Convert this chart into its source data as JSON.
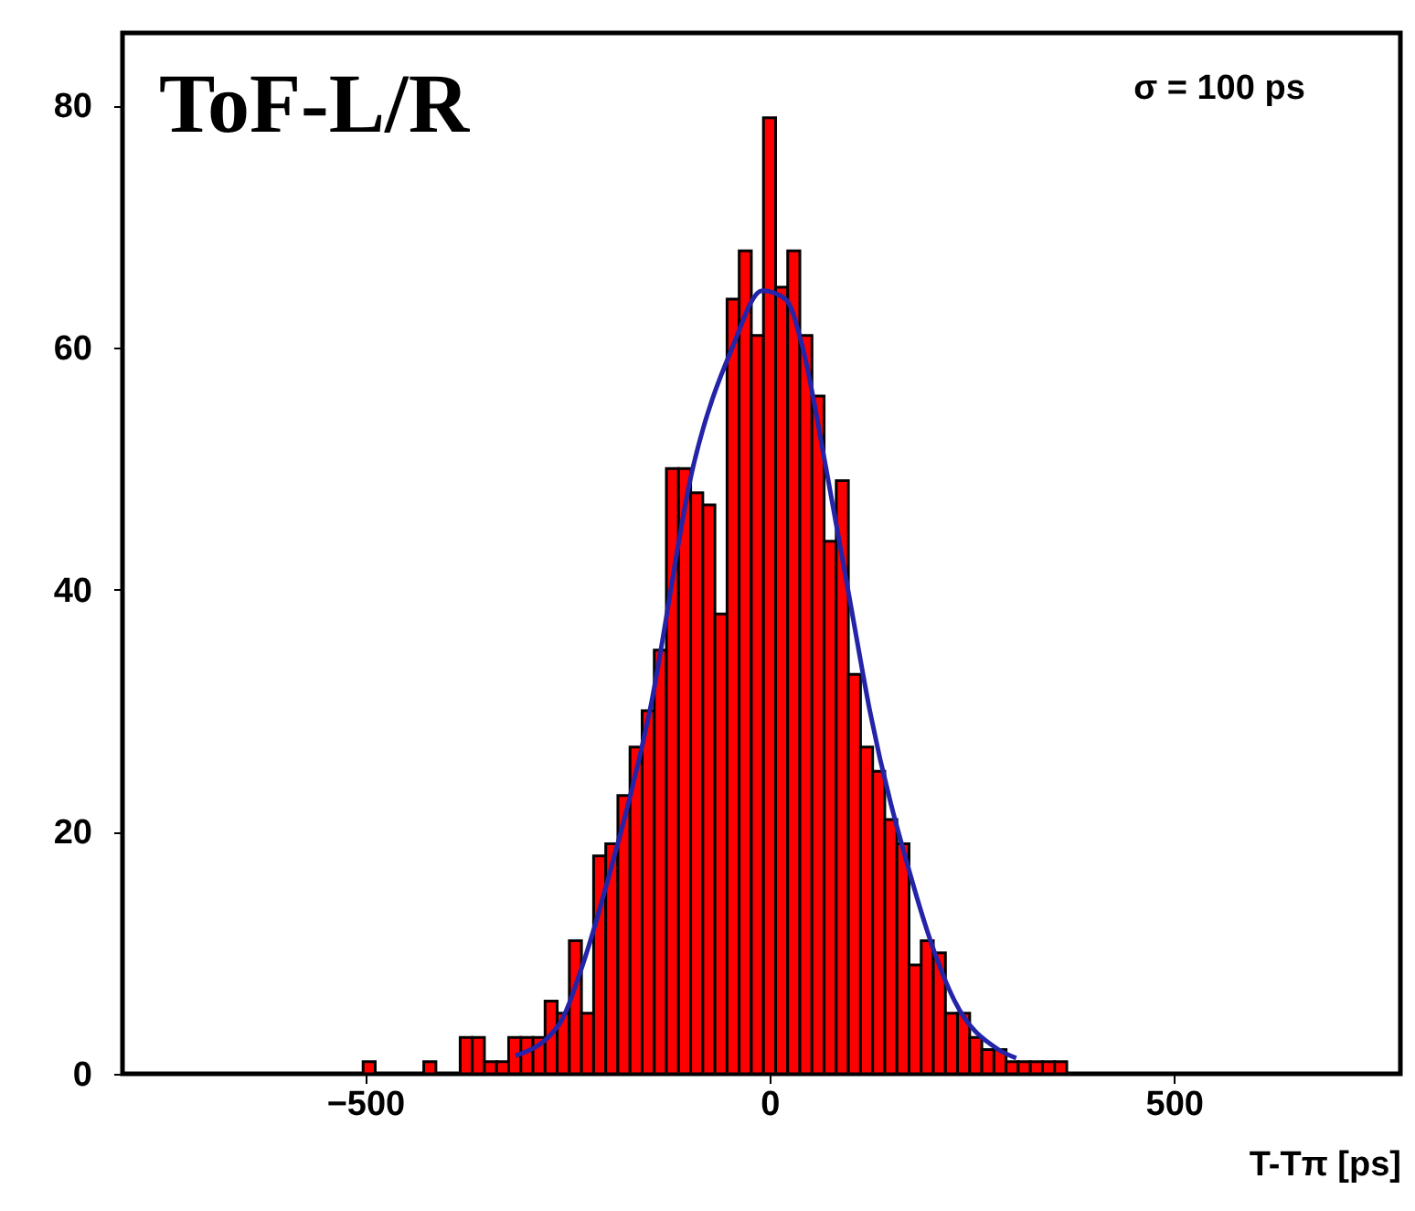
{
  "chart_data": {
    "type": "histogram",
    "xlabel": "T-Tπ [ps]",
    "annotations": [
      "ToF-L/R",
      "σ = 100 ps"
    ],
    "bins": [
      -502.5,
      -487.5,
      -472.5,
      -457.5,
      -442.5,
      -427.5,
      -412.5,
      -397.5,
      -382.5,
      -367.5,
      -352.5,
      -337.5,
      -322.5,
      -307.5,
      -292.5,
      -277.5,
      -262.5,
      -247.5,
      -232.5,
      -217.5,
      -202.5,
      -187.5,
      -172.5,
      -157.5,
      -142.5,
      -127.5,
      -112.5,
      -97.5,
      -82.5,
      -67.5,
      -52.5,
      -37.5,
      -22.5,
      -7.5,
      7.5,
      22.5,
      37.5,
      52.5,
      67.5,
      82.5,
      97.5,
      112.5,
      127.5,
      142.5,
      157.5,
      172.5,
      187.5,
      202.5,
      217.5,
      232.5,
      247.5,
      262.5,
      277.5,
      292.5,
      307.5,
      322.5,
      337.5,
      352.5,
      367.5
    ],
    "series": [
      {
        "type": "histogram",
        "color": "#ff0000",
        "values": [
          1,
          0,
          0,
          0,
          0,
          1,
          0,
          0,
          3,
          3,
          1,
          1,
          3,
          3,
          3,
          6,
          5,
          11,
          5,
          18,
          19,
          23,
          27,
          30,
          35,
          50,
          50,
          48,
          47,
          38,
          64,
          68,
          61,
          79,
          65,
          68,
          61,
          56,
          44,
          49,
          33,
          27,
          25,
          21,
          19,
          9,
          11,
          10,
          5,
          5,
          3,
          2,
          2,
          1,
          1,
          1,
          1,
          1
        ]
      },
      {
        "type": "line",
        "color": "#2424a8",
        "x": [
          -314,
          -261,
          -231,
          -200,
          -148,
          -95,
          -46,
          -9,
          20,
          41,
          70,
          101,
          124,
          176,
          199,
          229,
          283,
          305
        ],
        "values": [
          1.5,
          4,
          9,
          16,
          30,
          50,
          60,
          64.7,
          64,
          60,
          50,
          38.5,
          30,
          16,
          11,
          6,
          2,
          1.3
        ]
      }
    ],
    "xlim": [
      -800,
      780
    ],
    "ylim": [
      0,
      86
    ],
    "xticks": [
      -500,
      0,
      500
    ],
    "yticks": [
      0,
      20,
      40,
      60,
      80
    ]
  }
}
